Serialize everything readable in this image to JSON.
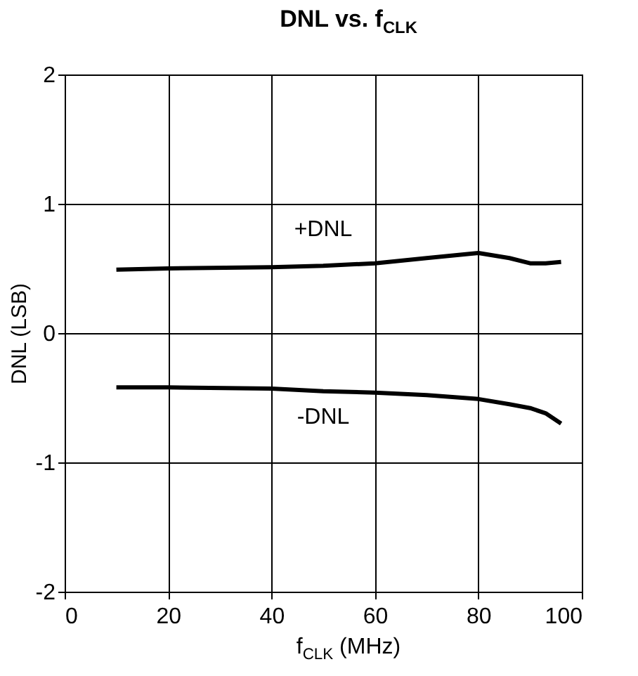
{
  "chart_data": {
    "type": "line",
    "title": "DNL vs. f$_{CLK}$",
    "xlabel": "f$_{CLK}$ (MHz)",
    "ylabel": "DNL (LSB)",
    "x": [
      10,
      20,
      40,
      50,
      60,
      70,
      80,
      86,
      90,
      93,
      96
    ],
    "series": [
      {
        "name": "+DNL",
        "color": "#000000",
        "values": [
          0.49,
          0.5,
          0.51,
          0.52,
          0.54,
          0.58,
          0.62,
          0.58,
          0.54,
          0.54,
          0.55
        ]
      },
      {
        "name": "-DNL",
        "color": "#000000",
        "values": [
          -0.42,
          -0.42,
          -0.43,
          -0.45,
          -0.46,
          -0.48,
          -0.51,
          -0.55,
          -0.58,
          -0.62,
          -0.7
        ]
      }
    ],
    "xlim": [
      0,
      100
    ],
    "xticks": [
      0,
      20,
      40,
      60,
      80,
      100
    ],
    "ylim": [
      -2,
      2
    ],
    "yticks": [
      -2,
      -1,
      0,
      1,
      2
    ],
    "grid": true,
    "marker": "none",
    "line_style": "solid"
  }
}
